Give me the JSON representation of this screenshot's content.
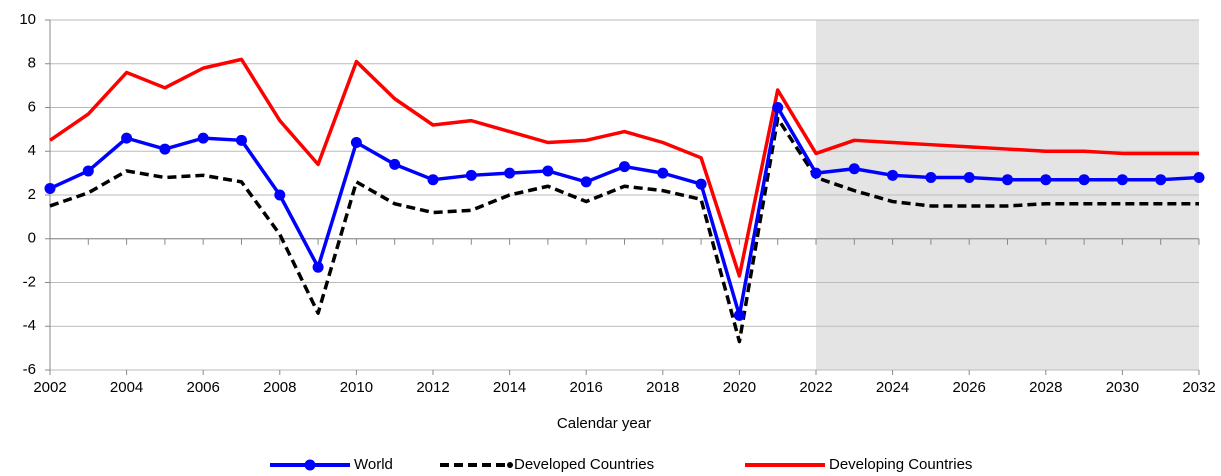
{
  "chart_data": {
    "type": "line",
    "x_label": "Calendar year",
    "x": [
      2002,
      2003,
      2004,
      2005,
      2006,
      2007,
      2008,
      2009,
      2010,
      2011,
      2012,
      2013,
      2014,
      2015,
      2016,
      2017,
      2018,
      2019,
      2020,
      2021,
      2022,
      2023,
      2024,
      2025,
      2026,
      2027,
      2028,
      2029,
      2030,
      2031,
      2032
    ],
    "series": [
      {
        "name": "World",
        "color": "#0000ff",
        "marker": true,
        "dash": false,
        "values": [
          2.3,
          3.1,
          4.6,
          4.1,
          4.6,
          4.5,
          2.0,
          -1.3,
          4.4,
          3.4,
          2.7,
          2.9,
          3.0,
          3.1,
          2.6,
          3.3,
          3.0,
          2.5,
          -3.5,
          6.0,
          3.0,
          3.2,
          2.9,
          2.8,
          2.8,
          2.7,
          2.7,
          2.7,
          2.7,
          2.7,
          2.8
        ]
      },
      {
        "name": "Developed Countries",
        "color": "#000000",
        "marker": false,
        "dash": true,
        "values": [
          1.5,
          2.1,
          3.1,
          2.8,
          2.9,
          2.6,
          0.2,
          -3.4,
          2.6,
          1.6,
          1.2,
          1.3,
          2.0,
          2.4,
          1.7,
          2.4,
          2.2,
          1.8,
          -4.7,
          5.5,
          2.8,
          2.2,
          1.7,
          1.5,
          1.5,
          1.5,
          1.6,
          1.6,
          1.6,
          1.6,
          1.6
        ]
      },
      {
        "name": "Developing Countries",
        "color": "#ff0000",
        "marker": false,
        "dash": false,
        "values": [
          4.5,
          5.7,
          7.6,
          6.9,
          7.8,
          8.2,
          5.4,
          3.4,
          8.1,
          6.4,
          5.2,
          5.4,
          4.9,
          4.4,
          4.5,
          4.9,
          4.4,
          3.7,
          -1.7,
          6.8,
          3.9,
          4.5,
          4.4,
          4.3,
          4.2,
          4.1,
          4.0,
          4.0,
          3.9,
          3.9,
          3.9
        ]
      }
    ],
    "shaded_region": [
      2022,
      2032
    ],
    "xlim": [
      2002,
      2032
    ],
    "xticks": [
      2002,
      2004,
      2006,
      2008,
      2010,
      2012,
      2014,
      2016,
      2018,
      2020,
      2022,
      2024,
      2026,
      2028,
      2030,
      2032
    ],
    "ylim": [
      -6,
      10
    ],
    "yticks": [
      -6,
      -4,
      -2,
      0,
      2,
      4,
      6,
      8,
      10
    ],
    "grid": true,
    "legend": "bottom"
  }
}
